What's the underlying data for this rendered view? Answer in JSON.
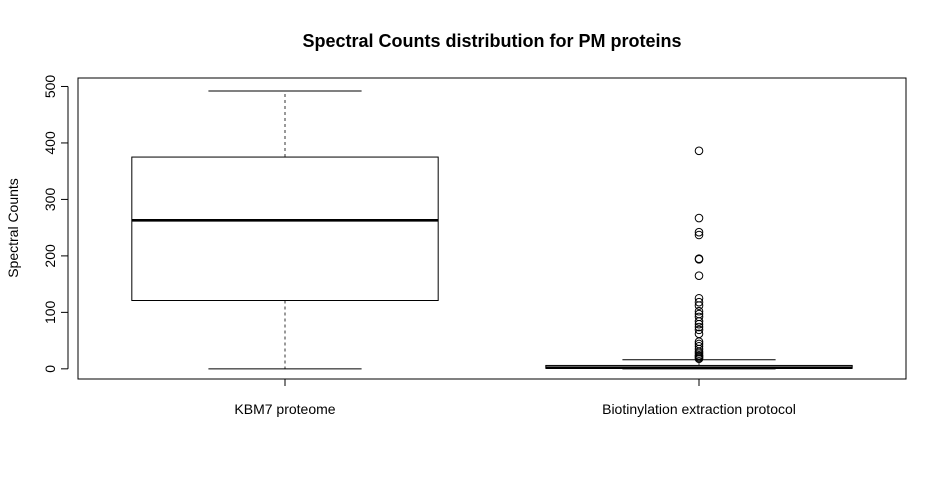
{
  "chart_data": {
    "type": "box",
    "title": "Spectral Counts distribution for PM proteins",
    "ylabel": "Spectral Counts",
    "xlabel": "",
    "ylim": [
      -18,
      515
    ],
    "yticks": [
      0,
      100,
      200,
      300,
      400,
      500
    ],
    "grid": false,
    "categories": [
      "KBM7 proteome",
      "Biotinylation extraction protocol"
    ],
    "boxes": [
      {
        "category": "KBM7 proteome",
        "whisker_low": 0,
        "q1": 121,
        "median": 263,
        "q3": 375,
        "whisker_high": 492,
        "outliers": []
      },
      {
        "category": "Biotinylation extraction protocol",
        "whisker_low": 0,
        "q1": 1,
        "median": 2,
        "q3": 6,
        "whisker_high": 16,
        "outliers": [
          386,
          267,
          242,
          237,
          195,
          194,
          165,
          125,
          118,
          112,
          102,
          97,
          92,
          84,
          79,
          74,
          69,
          62,
          48,
          44,
          40,
          35,
          30,
          27,
          24,
          22,
          20,
          18
        ]
      }
    ],
    "colors": {
      "box_fill": "#ffffff",
      "stroke": "#000000",
      "whisker": "#333333",
      "background": "#ffffff"
    }
  }
}
